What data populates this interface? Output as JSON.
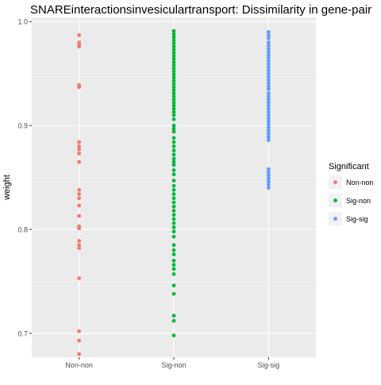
{
  "chart_data": {
    "type": "scatter",
    "title": "SNAREinteractionsinvesiculartransport: Dissimilarity in gene-pair",
    "xlabel": "",
    "ylabel": "weight",
    "categories": [
      "Non-non",
      "Sig-non",
      "Sig-sig"
    ],
    "ylim": [
      0.677,
      1.004
    ],
    "yticks": [
      0.7,
      0.8,
      0.9,
      1.0
    ],
    "ytick_labels": [
      "0.7",
      "0.8",
      "0.9",
      "1.0"
    ],
    "grid": true,
    "legend": {
      "title": "Significant",
      "position": "right",
      "entries": [
        "Non-non",
        "Sig-non",
        "Sig-sig"
      ]
    },
    "colors": {
      "Non-non": "#F8766D",
      "Sig-non": "#00BA38",
      "Sig-sig": "#619CFF",
      "panel_bg": "#EBEBEB",
      "grid_major": "#FFFFFF"
    },
    "series": [
      {
        "name": "Non-non",
        "x": "Non-non",
        "values": [
          0.987,
          0.98,
          0.978,
          0.976,
          0.939,
          0.937,
          0.884,
          0.88,
          0.877,
          0.873,
          0.865,
          0.838,
          0.834,
          0.83,
          0.823,
          0.813,
          0.803,
          0.801,
          0.789,
          0.785,
          0.782,
          0.753,
          0.702,
          0.693,
          0.68
        ]
      },
      {
        "name": "Sig-non",
        "x": "Sig-non",
        "values": [
          0.991,
          0.988,
          0.985,
          0.982,
          0.979,
          0.976,
          0.973,
          0.97,
          0.967,
          0.964,
          0.961,
          0.958,
          0.955,
          0.952,
          0.949,
          0.946,
          0.943,
          0.94,
          0.937,
          0.934,
          0.931,
          0.928,
          0.925,
          0.922,
          0.919,
          0.916,
          0.913,
          0.91,
          0.906,
          0.9,
          0.897,
          0.894,
          0.888,
          0.884,
          0.88,
          0.876,
          0.872,
          0.868,
          0.865,
          0.862,
          0.857,
          0.853,
          0.847,
          0.842,
          0.838,
          0.834,
          0.83,
          0.826,
          0.822,
          0.818,
          0.814,
          0.81,
          0.806,
          0.802,
          0.798,
          0.793,
          0.785,
          0.78,
          0.776,
          0.77,
          0.766,
          0.762,
          0.757,
          0.746,
          0.738,
          0.717,
          0.712,
          0.698
        ]
      },
      {
        "name": "Sig-sig",
        "x": "Sig-sig",
        "values": [
          0.99,
          0.987,
          0.984,
          0.98,
          0.977,
          0.974,
          0.971,
          0.968,
          0.965,
          0.962,
          0.959,
          0.956,
          0.953,
          0.95,
          0.947,
          0.944,
          0.941,
          0.938,
          0.935,
          0.931,
          0.928,
          0.925,
          0.922,
          0.919,
          0.916,
          0.913,
          0.91,
          0.907,
          0.904,
          0.901,
          0.898,
          0.895,
          0.892,
          0.889,
          0.886,
          0.858,
          0.855,
          0.852,
          0.849,
          0.846,
          0.843,
          0.84
        ]
      }
    ]
  }
}
